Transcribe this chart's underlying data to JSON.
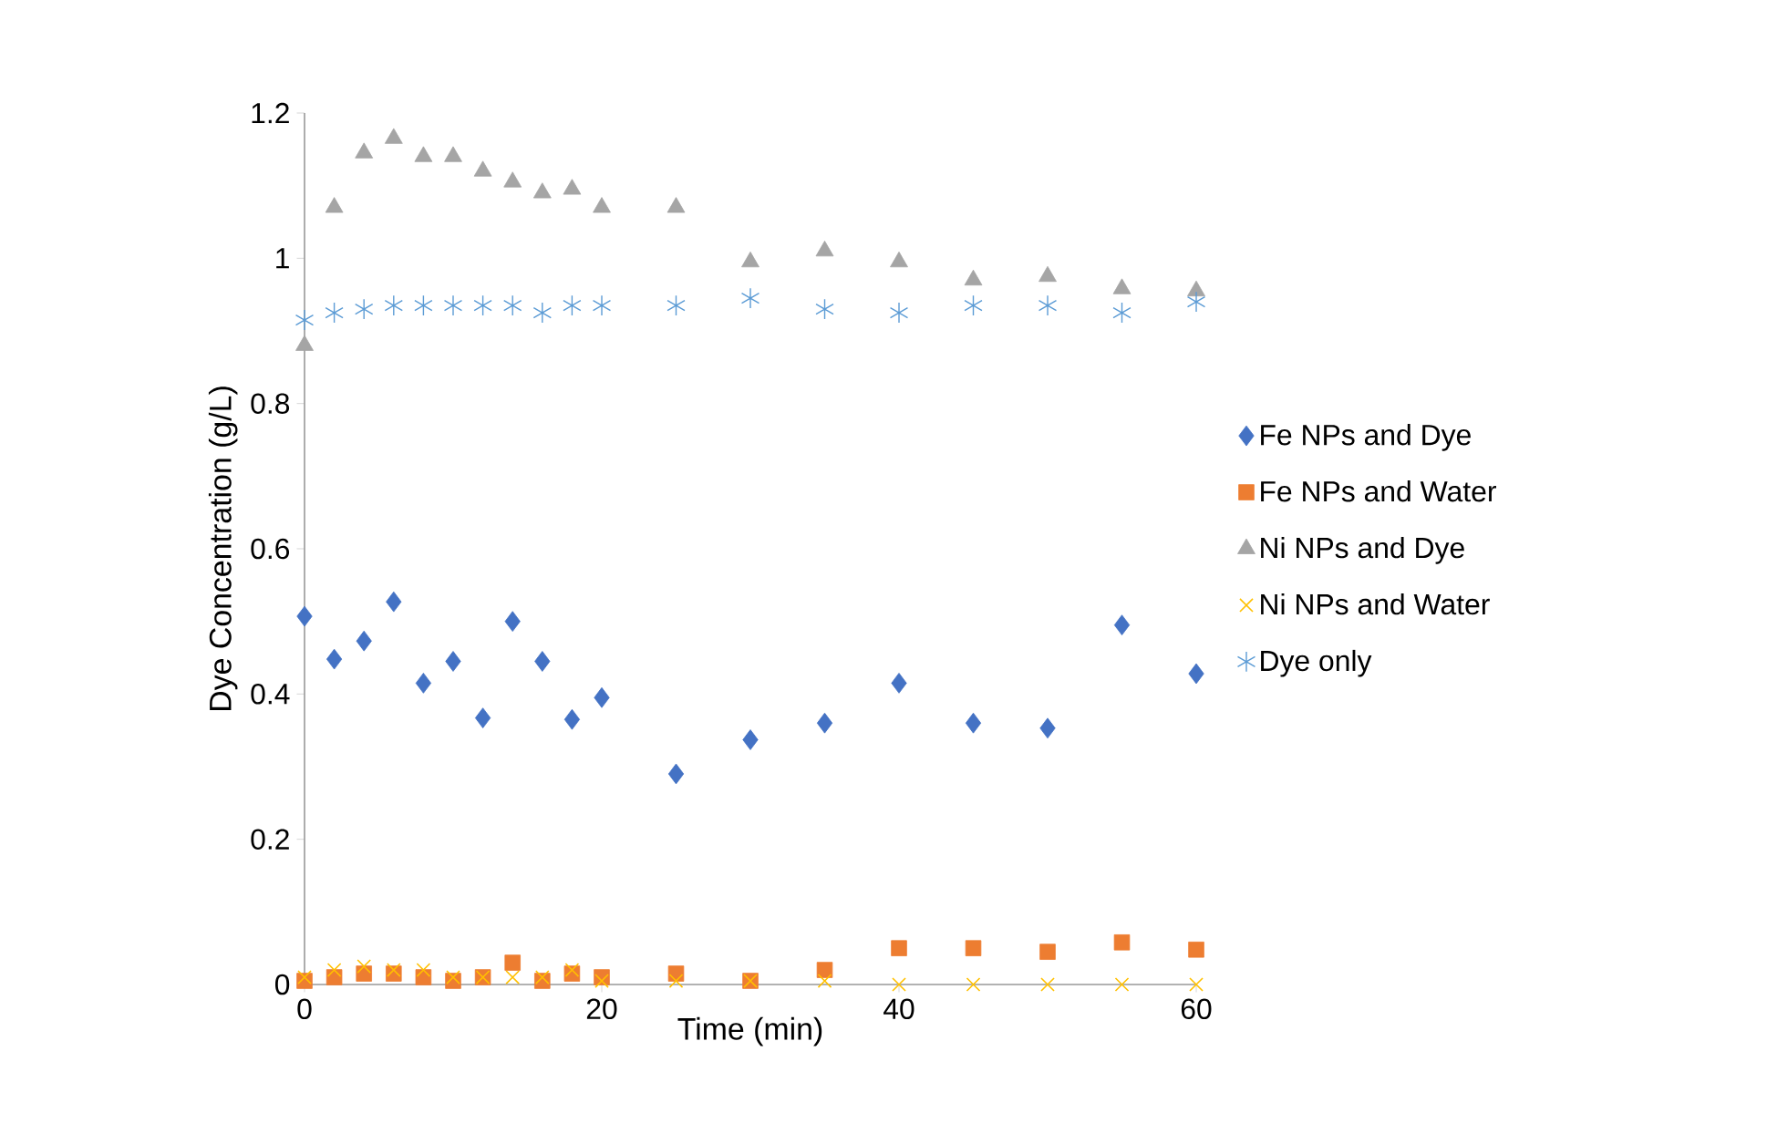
{
  "chart_data": {
    "type": "scatter",
    "xlabel": "Time (min)",
    "ylabel": "Dye Concentration (g/L)",
    "x": [
      0,
      2,
      4,
      6,
      8,
      10,
      12,
      14,
      16,
      18,
      20,
      25,
      30,
      35,
      40,
      45,
      50,
      55,
      60
    ],
    "series": [
      {
        "name": "Fe NPs and Dye",
        "color": "#4472c4",
        "marker": "diamond",
        "values": [
          0.507,
          0.448,
          0.473,
          0.527,
          0.415,
          0.445,
          0.367,
          0.5,
          0.445,
          0.365,
          0.395,
          0.29,
          0.337,
          0.36,
          0.415,
          0.36,
          0.353,
          0.495,
          0.428
        ]
      },
      {
        "name": "Fe NPs and Water",
        "color": "#ed7d31",
        "marker": "square",
        "values": [
          0.005,
          0.01,
          0.015,
          0.015,
          0.01,
          0.005,
          0.01,
          0.03,
          0.005,
          0.015,
          0.01,
          0.015,
          0.005,
          0.02,
          0.05,
          0.05,
          0.045,
          0.058,
          0.048
        ]
      },
      {
        "name": "Ni NPs and Dye",
        "color": "#a5a5a5",
        "marker": "triangle",
        "values": [
          0.88,
          1.07,
          1.145,
          1.165,
          1.14,
          1.14,
          1.12,
          1.105,
          1.09,
          1.095,
          1.07,
          1.07,
          0.995,
          1.01,
          0.995,
          0.97,
          0.975,
          0.958,
          0.955
        ]
      },
      {
        "name": "Ni NPs and Water",
        "color": "#ffc000",
        "marker": "cross",
        "values": [
          0.01,
          0.02,
          0.025,
          0.02,
          0.02,
          0.01,
          0.01,
          0.01,
          0.01,
          0.02,
          0.005,
          0.005,
          0.005,
          0.005,
          0,
          0,
          0,
          0,
          0
        ]
      },
      {
        "name": "Dye only",
        "color": "#5b9bd5",
        "marker": "cross",
        "values": [
          0.915,
          0.925,
          0.93,
          0.935,
          0.935,
          0.935,
          0.935,
          0.935,
          0.925,
          0.935,
          0.935,
          0.935,
          0.945,
          0.93,
          0.925,
          0.935,
          0.935,
          0.925,
          0.94
        ]
      }
    ],
    "xlim": [
      0,
      60
    ],
    "xticks": [
      0,
      20,
      40,
      60
    ],
    "ylim": [
      0,
      1.2
    ],
    "yticks": [
      0,
      0.2,
      0.4,
      0.6,
      0.8,
      1,
      1.2
    ],
    "grid": false,
    "legend": "right"
  }
}
